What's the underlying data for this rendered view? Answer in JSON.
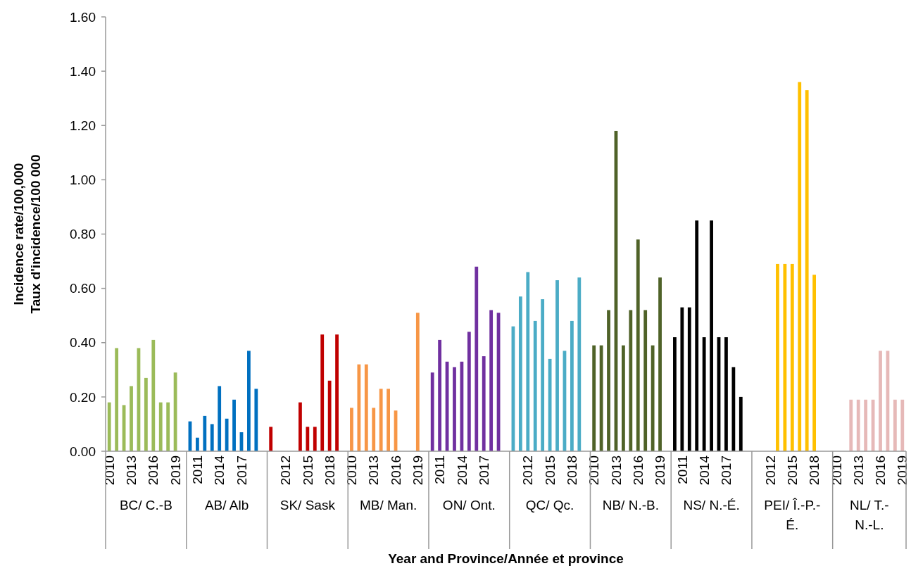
{
  "chart_data": {
    "type": "bar",
    "xlabel": "Year and Province/Année et province",
    "ylabel": "Incidence rate/100,000\nTaux d'incidence/100 000",
    "categories": [
      "2010",
      null,
      null,
      "2013",
      null,
      null,
      "2016",
      null,
      null,
      "2019",
      null,
      null,
      "2011",
      null,
      null,
      "2014",
      null,
      null,
      "2017",
      null,
      null,
      null,
      null,
      null,
      "2012",
      null,
      null,
      "2015",
      null,
      null,
      "2018",
      null,
      null,
      "2010",
      null,
      null,
      "2013",
      null,
      null,
      "2016",
      null,
      null,
      "2019",
      null,
      null,
      "2011",
      null,
      null,
      "2014",
      null,
      null,
      "2017",
      null,
      null,
      null,
      null,
      null,
      "2012",
      null,
      null,
      "2015",
      null,
      null,
      "2018",
      null,
      null,
      "2010",
      null,
      null,
      "2013",
      null,
      null,
      "2016",
      null,
      null,
      "2019",
      null,
      null,
      "2011",
      null,
      null,
      "2014",
      null,
      null,
      "2017",
      null,
      null,
      null,
      null,
      null,
      "2012",
      null,
      null,
      "2015",
      null,
      null,
      "2018",
      null,
      null,
      "2010",
      null,
      null,
      "2013",
      null,
      null,
      "2016",
      null,
      null,
      "2019"
    ],
    "values": [
      0.18,
      0.38,
      0.17,
      0.24,
      0.38,
      0.27,
      0.41,
      0.18,
      0.18,
      0.29,
      null,
      0.11,
      0.05,
      0.13,
      0.1,
      0.24,
      0.12,
      0.19,
      0.07,
      0.37,
      0.23,
      null,
      0.09,
      null,
      null,
      null,
      0.18,
      0.09,
      0.09,
      0.43,
      0.26,
      0.43,
      null,
      0.16,
      0.32,
      0.32,
      0.16,
      0.23,
      0.23,
      0.15,
      null,
      null,
      0.51,
      null,
      0.29,
      0.41,
      0.33,
      0.31,
      0.33,
      0.44,
      0.68,
      0.35,
      0.52,
      0.51,
      null,
      0.46,
      0.57,
      0.66,
      0.48,
      0.56,
      0.34,
      0.63,
      0.37,
      0.48,
      0.64,
      null,
      0.39,
      0.39,
      0.52,
      1.18,
      0.39,
      0.52,
      0.78,
      0.52,
      0.39,
      0.64,
      null,
      0.42,
      0.53,
      0.53,
      0.85,
      0.42,
      0.85,
      0.42,
      0.42,
      0.31,
      0.2,
      null,
      null,
      null,
      null,
      0.69,
      0.69,
      0.69,
      1.36,
      1.33,
      0.65,
      null,
      null,
      null,
      null,
      0.19,
      0.19,
      0.19,
      0.19,
      0.37,
      0.37,
      0.19,
      0.19
    ],
    "colors": [
      "#9bbb59",
      "#9bbb59",
      "#9bbb59",
      "#9bbb59",
      "#9bbb59",
      "#9bbb59",
      "#9bbb59",
      "#9bbb59",
      "#9bbb59",
      "#9bbb59",
      null,
      "#0070c0",
      "#0070c0",
      "#0070c0",
      "#0070c0",
      "#0070c0",
      "#0070c0",
      "#0070c0",
      "#0070c0",
      "#0070c0",
      "#0070c0",
      null,
      "#c00000",
      null,
      null,
      null,
      "#c00000",
      "#c00000",
      "#c00000",
      "#c00000",
      "#c00000",
      "#c00000",
      null,
      "#f79646",
      "#f79646",
      "#f79646",
      "#f79646",
      "#f79646",
      "#f79646",
      "#f79646",
      null,
      null,
      "#f79646",
      null,
      "#7030a0",
      "#7030a0",
      "#7030a0",
      "#7030a0",
      "#7030a0",
      "#7030a0",
      "#7030a0",
      "#7030a0",
      "#7030a0",
      "#7030a0",
      null,
      "#4bacc6",
      "#4bacc6",
      "#4bacc6",
      "#4bacc6",
      "#4bacc6",
      "#4bacc6",
      "#4bacc6",
      "#4bacc6",
      "#4bacc6",
      "#4bacc6",
      null,
      "#4f6228",
      "#4f6228",
      "#4f6228",
      "#4f6228",
      "#4f6228",
      "#4f6228",
      "#4f6228",
      "#4f6228",
      "#4f6228",
      "#4f6228",
      null,
      "#000000",
      "#000000",
      "#000000",
      "#000000",
      "#000000",
      "#000000",
      "#000000",
      "#000000",
      "#000000",
      "#000000",
      null,
      null,
      null,
      null,
      "#ffc000",
      "#ffc000",
      "#ffc000",
      "#ffc000",
      "#ffc000",
      "#ffc000",
      null,
      null,
      null,
      null,
      "#e6b9b8",
      "#e6b9b8",
      "#e6b9b8",
      "#e6b9b8",
      "#e6b9b8",
      "#e6b9b8",
      "#e6b9b8",
      "#e6b9b8"
    ],
    "annotations": [
      "BC/ C.-B",
      "AB/ Alb",
      "SK/ Sask",
      "MB/ Man.",
      "ON/ Ont.",
      "QC/ Qc.",
      "NB/ N.-B.",
      "NS/ N.-É.",
      "PEI/ Î.-P.-É.",
      "NL/ T.-N.-L."
    ],
    "ylim": [
      0,
      1.6
    ],
    "yticks": [
      {
        "value": 0,
        "label": "0.00"
      },
      {
        "value": 0.2,
        "label": "0.20"
      },
      {
        "value": 0.4,
        "label": "0.40"
      },
      {
        "value": 0.6,
        "label": "0.60"
      },
      {
        "value": 0.8,
        "label": "0.80"
      },
      {
        "value": 1.0,
        "label": "1.00"
      },
      {
        "value": 1.2,
        "label": "1.20"
      },
      {
        "value": 1.4,
        "label": "1.40"
      },
      {
        "value": 1.6,
        "label": "1.60"
      }
    ],
    "grid": false
  }
}
